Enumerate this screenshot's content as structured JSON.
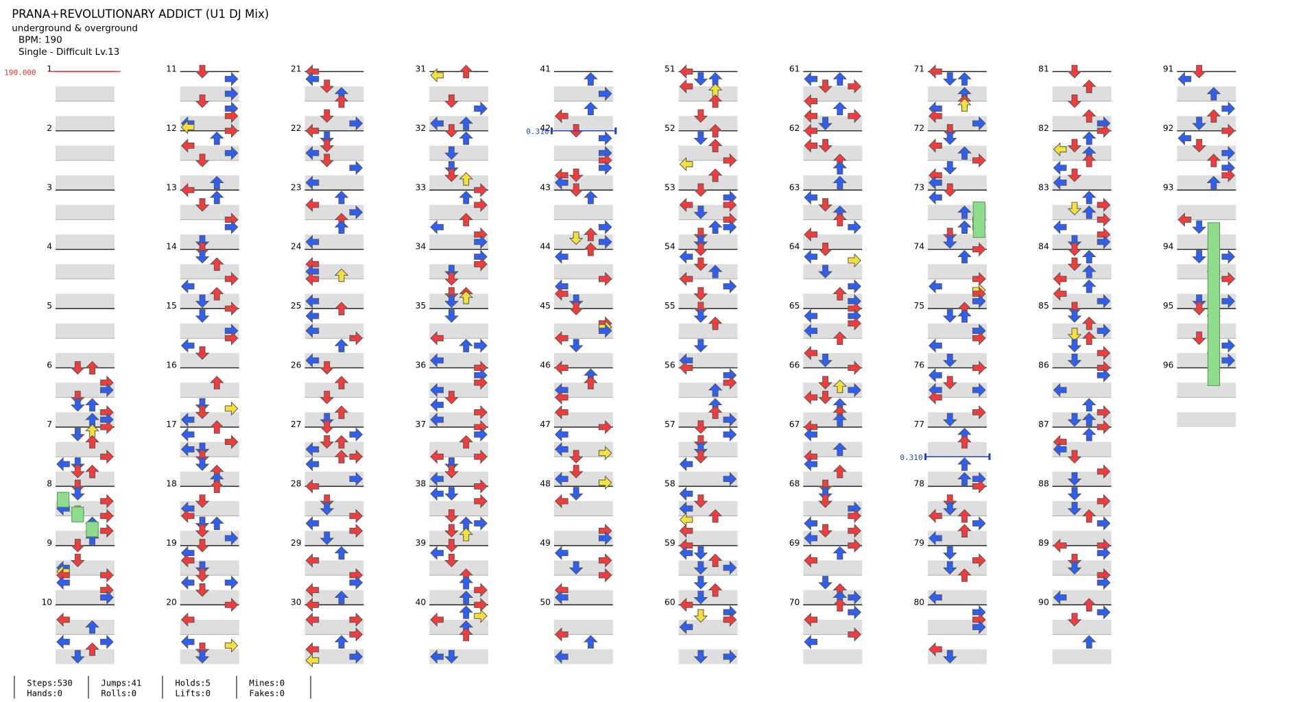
{
  "header": {
    "title": "PRANA+REVOLUTIONARY ADDICT (U1 DJ Mix)",
    "subtitle": "underground & overground",
    "bpm": "BPM: 190",
    "difficulty": "Single - Difficult Lv.13"
  },
  "measures": [
    1,
    2,
    3,
    4,
    5,
    6,
    7,
    8,
    9,
    10,
    11,
    12,
    13,
    14,
    15,
    16,
    17,
    18,
    19,
    20,
    21,
    22,
    23,
    24,
    25,
    26,
    27,
    28,
    29,
    30,
    31,
    32,
    33,
    34,
    35,
    36,
    37,
    38,
    39,
    40,
    41,
    42,
    43,
    44,
    45,
    46,
    47,
    48,
    49,
    50,
    51,
    52,
    53,
    54,
    55,
    56,
    57,
    58,
    59,
    60,
    61,
    62,
    63,
    64,
    65,
    66,
    67,
    68,
    69,
    70,
    71,
    72,
    73,
    74,
    75,
    76,
    77,
    78,
    79,
    80,
    81,
    82,
    83,
    84,
    85,
    86,
    87,
    88,
    89,
    90,
    91,
    92,
    93,
    94,
    95,
    96
  ],
  "bpm_change": "190.000",
  "stops": [
    "0.310",
    "0.310"
  ],
  "stats": [
    "Steps:530",
    "Hands:0",
    "Jumps:41",
    "Rolls:0",
    "Holds:5",
    "Lifts:0",
    "Mines:0",
    "Fakes:0"
  ]
}
